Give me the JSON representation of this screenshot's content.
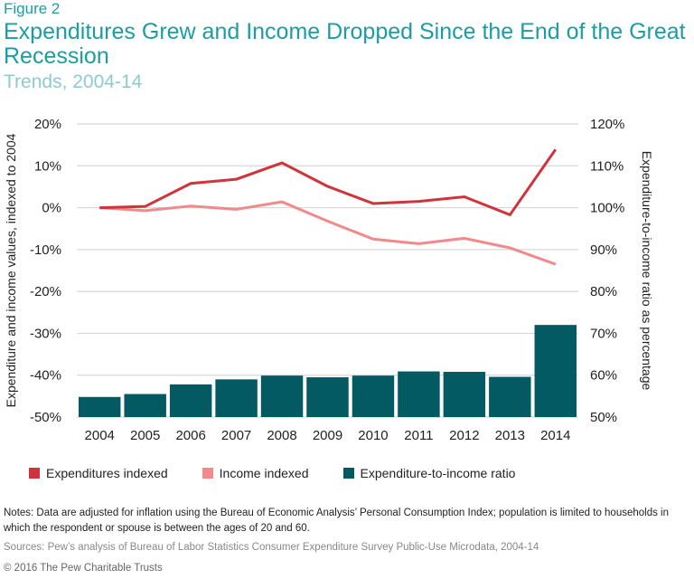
{
  "header": {
    "figure": "Figure 2",
    "title": "Expenditures Grew and Income Dropped Since the End of the Great Recession",
    "subtitle": "Trends, 2004-14"
  },
  "chart_data": {
    "type": "bar+line",
    "categories": [
      "2004",
      "2005",
      "2006",
      "2007",
      "2008",
      "2009",
      "2010",
      "2011",
      "2012",
      "2013",
      "2014"
    ],
    "series": [
      {
        "name": "Expenditures indexed",
        "type": "line",
        "axis": "left",
        "color": "#d0343a",
        "values": [
          0,
          0.3,
          5.8,
          6.8,
          10.7,
          5.1,
          1.0,
          1.5,
          2.6,
          -1.7,
          13.9
        ]
      },
      {
        "name": "Income indexed",
        "type": "line",
        "axis": "left",
        "color": "#f28a8c",
        "values": [
          0,
          -0.7,
          0.4,
          -0.4,
          1.4,
          -3.2,
          -7.5,
          -8.6,
          -7.3,
          -9.6,
          -13.5
        ]
      },
      {
        "name": "Expenditure-to-income ratio",
        "type": "bar",
        "axis": "right",
        "color": "#035a63",
        "values": [
          54.8,
          55.5,
          57.8,
          59.0,
          59.9,
          59.5,
          59.9,
          60.9,
          60.8,
          59.6,
          72.0
        ]
      }
    ],
    "ylabel": "Expenditure and income values, indexed to 2004",
    "y2label": "Expenditure-to-income ratio as percentage",
    "ylim": [
      -50,
      20
    ],
    "y2lim": [
      50,
      120
    ],
    "yticks": [
      "20%",
      "10%",
      "0%",
      "-10%",
      "-20%",
      "-30%",
      "-40%",
      "-50%"
    ],
    "y2ticks": [
      "120%",
      "110%",
      "100%",
      "90%",
      "80%",
      "70%",
      "60%",
      "50%"
    ],
    "grid": true,
    "legend": "bottom"
  },
  "footer": {
    "notes": "Notes: Data are adjusted for inflation using the Bureau of Economic Analysis’ Personal Consumption Index; population is limited to households in which the respondent or spouse is between the ages of 20 and 60.",
    "sources": "Sources: Pew’s analysis of Bureau of Labor Statistics Consumer Expenditure Survey Public-Use Microdata, 2004-14",
    "copyright": "© 2016 The Pew Charitable Trusts"
  }
}
